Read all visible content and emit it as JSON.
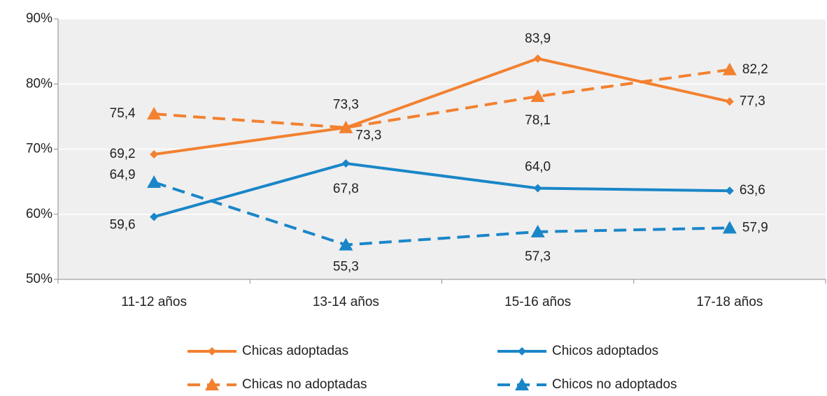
{
  "chart_data": {
    "type": "line",
    "categories": [
      "11-12 años",
      "13-14 años",
      "15-16 años",
      "17-18 años"
    ],
    "ylim": [
      50,
      90
    ],
    "yticks": [
      {
        "value": 50,
        "label": "50%"
      },
      {
        "value": 60,
        "label": "60%"
      },
      {
        "value": 70,
        "label": "70%"
      },
      {
        "value": 80,
        "label": "80%"
      },
      {
        "value": 90,
        "label": "90%"
      }
    ],
    "grid": true,
    "series": [
      {
        "name": "Chicas adoptadas",
        "color": "#f28130",
        "dashed": false,
        "marker": "diamond",
        "values": [
          69.2,
          73.3,
          83.9,
          77.3
        ],
        "value_labels": [
          "69,2",
          "73,3",
          "83,9",
          "77,3"
        ]
      },
      {
        "name": "Chicos adoptados",
        "color": "#1a86c8",
        "dashed": false,
        "marker": "diamond",
        "values": [
          59.6,
          67.8,
          64.0,
          63.6
        ],
        "value_labels": [
          "59,6",
          "67,8",
          "64,0",
          "63,6"
        ]
      },
      {
        "name": "Chicas no adoptadas",
        "color": "#f28130",
        "dashed": true,
        "marker": "triangle",
        "values": [
          75.4,
          73.3,
          78.1,
          82.2
        ],
        "value_labels": [
          "75,4",
          "73,3",
          "78,1",
          "82,2"
        ]
      },
      {
        "name": "Chicos no adoptados",
        "color": "#1a86c8",
        "dashed": true,
        "marker": "triangle",
        "values": [
          64.9,
          55.3,
          57.3,
          57.9
        ],
        "value_labels": [
          "64,9",
          "55,3",
          "57,3",
          "57,9"
        ]
      }
    ]
  }
}
